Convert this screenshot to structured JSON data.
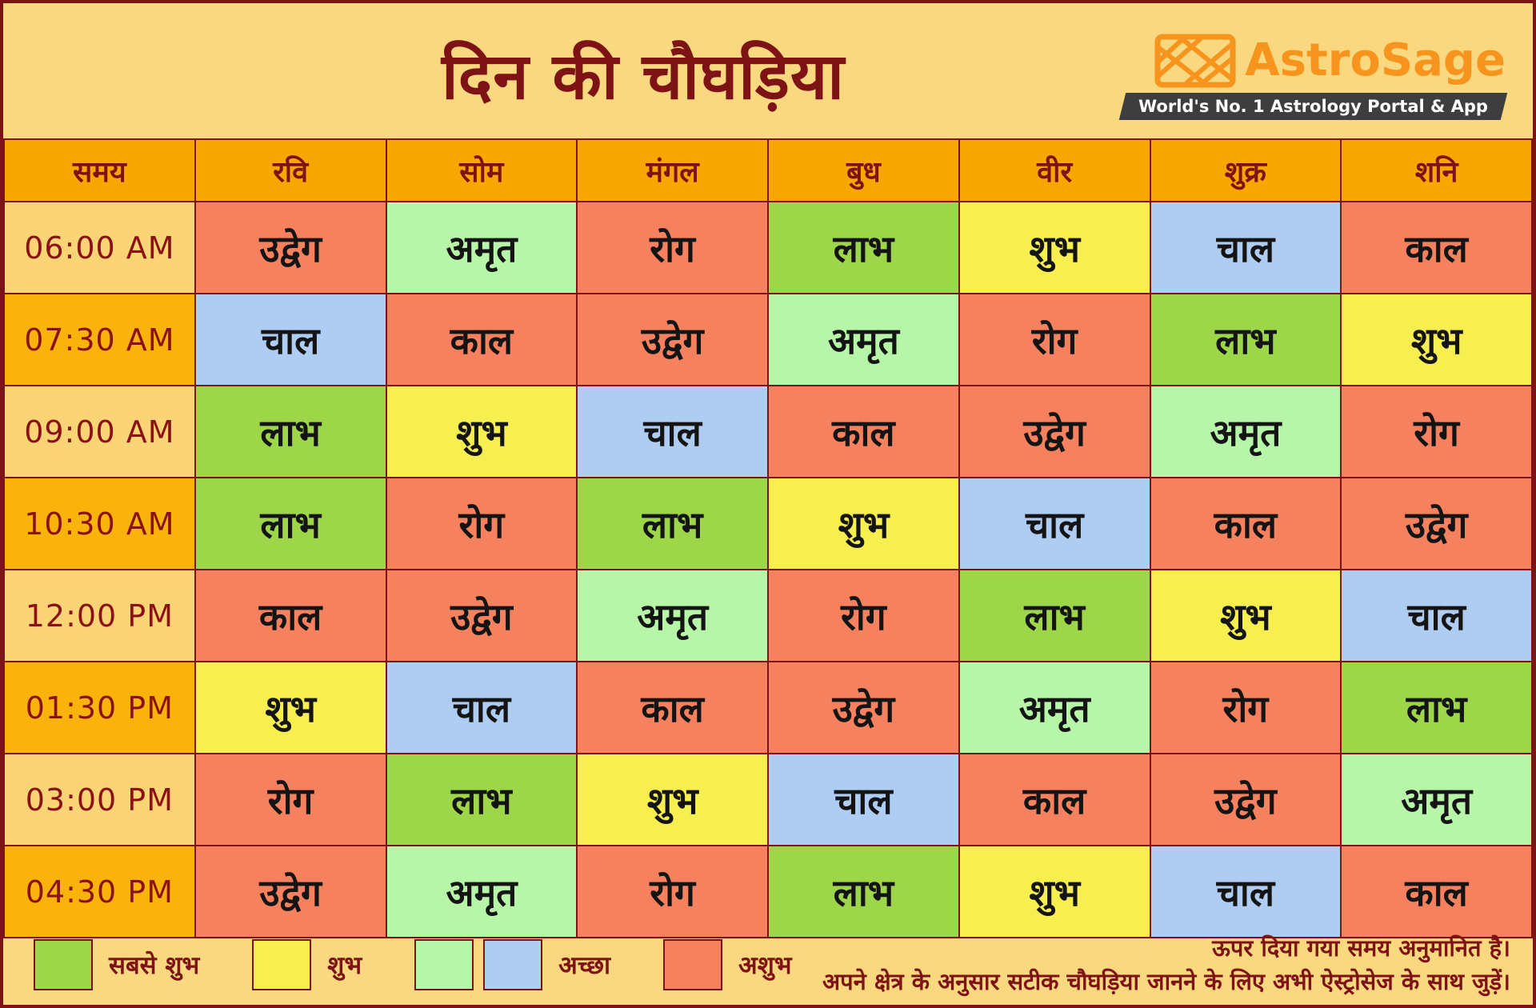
{
  "page": {
    "title": "दिन की चौघड़िया"
  },
  "logo": {
    "brand": "AstroSage",
    "tagline": "World's No. 1 Astrology Portal & App"
  },
  "chart_data": {
    "type": "table",
    "title": "दिन की चौघड़िया",
    "columns": [
      "समय",
      "रवि",
      "सोम",
      "मंगल",
      "बुध",
      "वीर",
      "शुक्र",
      "शनि"
    ],
    "rows": [
      {
        "time": "06:00 AM",
        "values": [
          "उद्वेग",
          "अमृत",
          "रोग",
          "लाभ",
          "शुभ",
          "चाल",
          "काल"
        ]
      },
      {
        "time": "07:30 AM",
        "values": [
          "चाल",
          "काल",
          "उद्वेग",
          "अमृत",
          "रोग",
          "लाभ",
          "शुभ"
        ]
      },
      {
        "time": "09:00 AM",
        "values": [
          "लाभ",
          "शुभ",
          "चाल",
          "काल",
          "उद्वेग",
          "अमृत",
          "रोग"
        ]
      },
      {
        "time": "10:30 AM",
        "values": [
          "लाभ",
          "रोग",
          "लाभ",
          "शुभ",
          "चाल",
          "काल",
          "उद्वेग"
        ]
      },
      {
        "time": "12:00 PM",
        "values": [
          "काल",
          "उद्वेग",
          "अमृत",
          "रोग",
          "लाभ",
          "शुभ",
          "चाल"
        ]
      },
      {
        "time": "01:30 PM",
        "values": [
          "शुभ",
          "चाल",
          "काल",
          "उद्वेग",
          "अमृत",
          "रोग",
          "लाभ"
        ]
      },
      {
        "time": "03:00 PM",
        "values": [
          "रोग",
          "लाभ",
          "शुभ",
          "चाल",
          "काल",
          "उद्वेग",
          "अमृत"
        ]
      },
      {
        "time": "04:30 PM",
        "values": [
          "उद्वेग",
          "अमृत",
          "रोग",
          "लाभ",
          "शुभ",
          "चाल",
          "काल"
        ]
      }
    ],
    "category_of_value": {
      "लाभ": "sabse_shubh",
      "शुभ": "shubh",
      "अमृत": "achha_green",
      "चाल": "achha_blue",
      "उद्वेग": "ashubh",
      "रोग": "ashubh",
      "काल": "ashubh"
    }
  },
  "colors": {
    "sabse_shubh": "#9ED649",
    "shubh": "#F7EE4F",
    "achha_green": "#B7F6A9",
    "achha_blue": "#AFCCF2",
    "ashubh": "#F5815F",
    "maroon": "#7E1315",
    "header_bg": "#F8A701",
    "time_odd_bg": "#FBD475",
    "time_even_bg": "#FAB30B",
    "page_bg": "#FAD87F",
    "brand": "#F7941E",
    "banner": "#3E3E3E"
  },
  "legend": [
    {
      "label": "सबसे शुभ",
      "swatches": [
        "sabse_shubh"
      ]
    },
    {
      "label": "शुभ",
      "swatches": [
        "shubh"
      ]
    },
    {
      "label": "अच्छा",
      "swatches": [
        "achha_green",
        "achha_blue"
      ]
    },
    {
      "label": "अशुभ",
      "swatches": [
        "ashubh"
      ]
    }
  ],
  "footer": {
    "notes": [
      "ऊपर दिया गया समय अनुमानित है।",
      "अपने क्षेत्र के अनुसार सटीक चौघड़िया जानने के लिए अभी ऐस्ट्रोसेज के साथ जुड़ें।"
    ]
  }
}
